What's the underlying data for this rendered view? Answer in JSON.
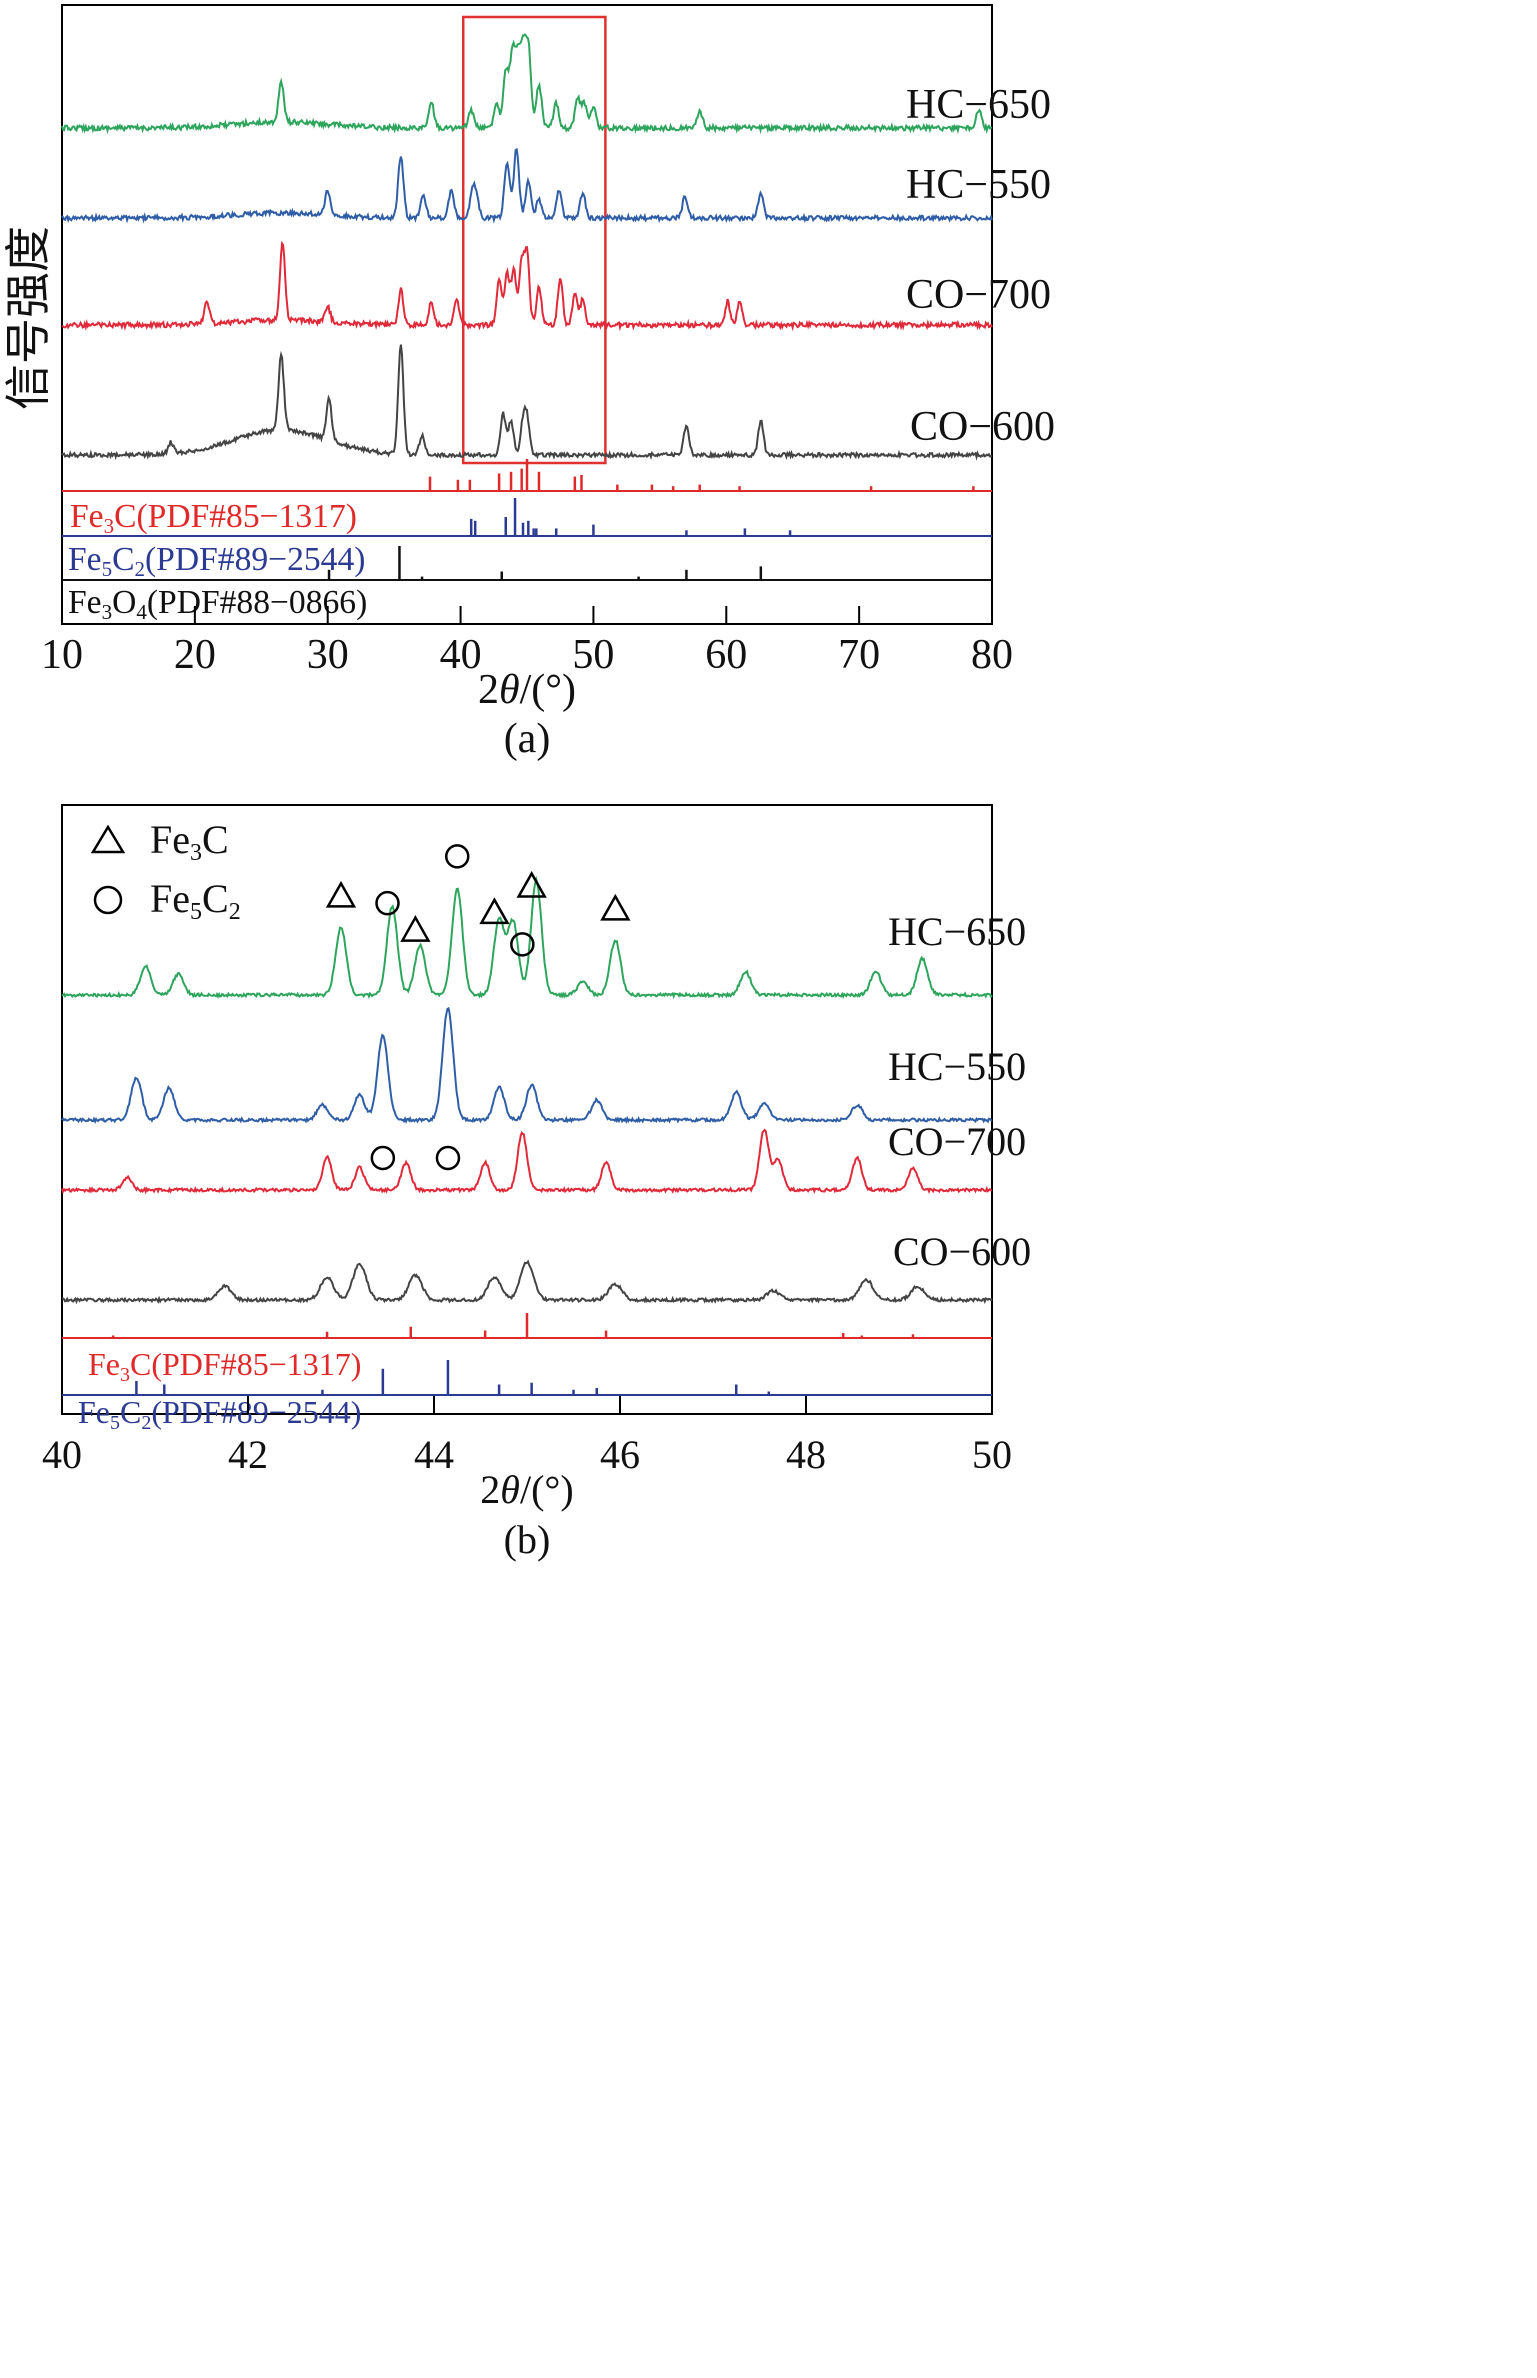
{
  "chart_data": [
    {
      "type": "line",
      "panel_label": "(a)",
      "ylabel": "信号强度",
      "xlabel_parts": [
        "2",
        "θ",
        "/(°)"
      ],
      "xlim": [
        10,
        80
      ],
      "xticks": [
        10,
        20,
        30,
        40,
        50,
        60,
        70,
        80
      ],
      "grid": false,
      "highlight_box": {
        "x_range": [
          40.2,
          50.9
        ],
        "color": "#e03030"
      },
      "series": [
        {
          "name": "HC−650",
          "color": "#2ea55c",
          "peaks": [
            [
              26.5,
              0.55
            ],
            [
              37.8,
              0.35
            ],
            [
              40.8,
              0.25
            ],
            [
              42.7,
              0.35
            ],
            [
              43.4,
              0.8
            ],
            [
              43.9,
              1.0
            ],
            [
              44.3,
              0.9
            ],
            [
              44.7,
              1.0
            ],
            [
              45.1,
              1.1
            ],
            [
              45.9,
              0.6
            ],
            [
              47.2,
              0.35
            ],
            [
              48.8,
              0.4
            ],
            [
              49.3,
              0.35
            ],
            [
              50.0,
              0.3
            ],
            [
              58.0,
              0.25
            ],
            [
              79.0,
              0.25
            ]
          ]
        },
        {
          "name": "HC−550",
          "color": "#2f5ea6",
          "peaks": [
            [
              30.0,
              0.4
            ],
            [
              35.5,
              1.0
            ],
            [
              37.2,
              0.35
            ],
            [
              39.3,
              0.45
            ],
            [
              40.9,
              0.4
            ],
            [
              41.2,
              0.3
            ],
            [
              43.5,
              0.9
            ],
            [
              44.2,
              1.1
            ],
            [
              45.1,
              0.6
            ],
            [
              45.9,
              0.3
            ],
            [
              47.4,
              0.45
            ],
            [
              49.2,
              0.4
            ],
            [
              56.9,
              0.35
            ],
            [
              62.6,
              0.4
            ]
          ]
        },
        {
          "name": "CO−700",
          "color": "#e02a3a",
          "peaks": [
            [
              20.9,
              0.3
            ],
            [
              26.6,
              1.0
            ],
            [
              30.0,
              0.2
            ],
            [
              35.5,
              0.45
            ],
            [
              37.8,
              0.3
            ],
            [
              39.7,
              0.35
            ],
            [
              42.9,
              0.6
            ],
            [
              43.5,
              0.65
            ],
            [
              44.0,
              0.7
            ],
            [
              44.6,
              0.8
            ],
            [
              45.0,
              0.9
            ],
            [
              45.9,
              0.5
            ],
            [
              47.5,
              0.6
            ],
            [
              48.6,
              0.4
            ],
            [
              49.2,
              0.35
            ],
            [
              60.1,
              0.3
            ],
            [
              61.0,
              0.3
            ]
          ]
        },
        {
          "name": "CO−600",
          "color": "#444444",
          "peaks": [
            [
              18.2,
              0.15
            ],
            [
              26.5,
              1.0
            ],
            [
              30.1,
              0.55
            ],
            [
              35.5,
              1.45
            ],
            [
              37.1,
              0.25
            ],
            [
              43.2,
              0.55
            ],
            [
              43.8,
              0.45
            ],
            [
              44.7,
              0.4
            ],
            [
              45.0,
              0.45
            ],
            [
              57.0,
              0.4
            ],
            [
              62.6,
              0.45
            ]
          ]
        }
      ],
      "references": [
        {
          "name": "Fe3C(PDF#85−1317)",
          "label_parts": [
            "Fe",
            "3",
            "C(PDF#85−1317)"
          ],
          "color": "#e02a2a",
          "lines": [
            [
              37.7,
              0.45
            ],
            [
              39.8,
              0.35
            ],
            [
              40.7,
              0.35
            ],
            [
              42.9,
              0.55
            ],
            [
              43.8,
              0.6
            ],
            [
              44.6,
              0.7
            ],
            [
              45.0,
              1.0
            ],
            [
              45.9,
              0.6
            ],
            [
              48.6,
              0.45
            ],
            [
              49.1,
              0.5
            ],
            [
              51.8,
              0.2
            ],
            [
              54.4,
              0.2
            ],
            [
              56.0,
              0.15
            ],
            [
              58.0,
              0.2
            ],
            [
              61.0,
              0.15
            ],
            [
              70.9,
              0.15
            ],
            [
              78.6,
              0.15
            ]
          ]
        },
        {
          "name": "Fe5C2(PDF#89−2544)",
          "label_parts": [
            "Fe",
            "5",
            "C",
            "2",
            "(PDF#89−2544)"
          ],
          "color": "#2b3a92",
          "lines": [
            [
              40.8,
              0.45
            ],
            [
              41.1,
              0.4
            ],
            [
              43.4,
              0.5
            ],
            [
              44.1,
              1.0
            ],
            [
              44.7,
              0.35
            ],
            [
              45.1,
              0.4
            ],
            [
              45.5,
              0.2
            ],
            [
              45.7,
              0.2
            ],
            [
              47.2,
              0.2
            ],
            [
              50.0,
              0.3
            ],
            [
              57.0,
              0.15
            ],
            [
              61.4,
              0.2
            ],
            [
              64.8,
              0.15
            ]
          ]
        },
        {
          "name": "Fe3O4(PDF#88−0866)",
          "label_parts": [
            "Fe",
            "3",
            "O",
            "4",
            "(PDF#88−0866)"
          ],
          "color": "#111111",
          "lines": [
            [
              30.1,
              0.3
            ],
            [
              35.4,
              1.0
            ],
            [
              37.1,
              0.1
            ],
            [
              43.1,
              0.25
            ],
            [
              53.4,
              0.1
            ],
            [
              57.0,
              0.3
            ],
            [
              62.6,
              0.4
            ]
          ]
        }
      ]
    },
    {
      "type": "line",
      "panel_label": "(b)",
      "xlabel_parts": [
        "2",
        "θ",
        "/(°)"
      ],
      "xlim": [
        40,
        50
      ],
      "xticks": [
        40,
        42,
        44,
        46,
        48,
        50
      ],
      "grid": false,
      "legend": [
        {
          "marker": "triangle",
          "label_parts": [
            "Fe",
            "3",
            "C"
          ]
        },
        {
          "marker": "circle",
          "label_parts": [
            "Fe",
            "5",
            "C",
            "2"
          ]
        }
      ],
      "series": [
        {
          "name": "HC−650",
          "color": "#2ea55c",
          "peaks": [
            [
              40.9,
              0.55
            ],
            [
              41.25,
              0.4
            ],
            [
              43.0,
              1.3
            ],
            [
              43.55,
              1.7
            ],
            [
              43.85,
              0.95
            ],
            [
              44.25,
              2.05
            ],
            [
              44.7,
              1.45
            ],
            [
              44.85,
              1.4
            ],
            [
              45.1,
              2.2
            ],
            [
              45.6,
              0.25
            ],
            [
              45.95,
              1.05
            ],
            [
              47.35,
              0.45
            ],
            [
              48.75,
              0.45
            ],
            [
              49.25,
              0.7
            ]
          ],
          "markers": [
            {
              "x": 43.0,
              "shape": "triangle"
            },
            {
              "x": 43.5,
              "shape": "circle"
            },
            {
              "x": 43.8,
              "shape": "triangle"
            },
            {
              "x": 44.25,
              "shape": "circle"
            },
            {
              "x": 44.65,
              "shape": "triangle"
            },
            {
              "x": 44.95,
              "shape": "circle"
            },
            {
              "x": 45.05,
              "shape": "triangle"
            },
            {
              "x": 45.95,
              "shape": "triangle"
            }
          ]
        },
        {
          "name": "HC−550",
          "color": "#2f5ea6",
          "peaks": [
            [
              40.8,
              0.85
            ],
            [
              41.15,
              0.65
            ],
            [
              42.8,
              0.3
            ],
            [
              43.2,
              0.5
            ],
            [
              43.45,
              1.7
            ],
            [
              44.15,
              2.25
            ],
            [
              44.7,
              0.65
            ],
            [
              45.05,
              0.7
            ],
            [
              45.75,
              0.4
            ],
            [
              47.25,
              0.55
            ],
            [
              47.55,
              0.35
            ],
            [
              48.55,
              0.3
            ]
          ]
        },
        {
          "name": "CO−700",
          "color": "#e02a3a",
          "peaks": [
            [
              40.7,
              0.25
            ],
            [
              42.85,
              0.65
            ],
            [
              43.2,
              0.45
            ],
            [
              43.7,
              0.55
            ],
            [
              44.55,
              0.55
            ],
            [
              44.95,
              1.15
            ],
            [
              45.85,
              0.55
            ],
            [
              47.55,
              1.2
            ],
            [
              47.7,
              0.6
            ],
            [
              48.55,
              0.65
            ],
            [
              49.15,
              0.45
            ]
          ],
          "markers": [
            {
              "x": 43.45,
              "shape": "circle"
            },
            {
              "x": 44.15,
              "shape": "circle"
            }
          ]
        },
        {
          "name": "CO−600",
          "color": "#444444",
          "peaks": [
            [
              41.75,
              0.3
            ],
            [
              42.85,
              0.5
            ],
            [
              43.2,
              0.8
            ],
            [
              43.8,
              0.55
            ],
            [
              44.65,
              0.5
            ],
            [
              45.0,
              0.85
            ],
            [
              45.95,
              0.35
            ],
            [
              47.65,
              0.2
            ],
            [
              48.65,
              0.45
            ],
            [
              49.2,
              0.3
            ]
          ]
        }
      ],
      "references": [
        {
          "name": "Fe3C(PDF#85−1317)",
          "label_parts": [
            "Fe",
            "3",
            "C(PDF#85−1317)"
          ],
          "color": "#e02a2a",
          "lines": [
            [
              40.55,
              0.1
            ],
            [
              42.85,
              0.25
            ],
            [
              43.75,
              0.45
            ],
            [
              44.55,
              0.3
            ],
            [
              45.0,
              1.0
            ],
            [
              45.85,
              0.3
            ],
            [
              48.4,
              0.2
            ],
            [
              48.6,
              0.1
            ],
            [
              49.15,
              0.15
            ]
          ]
        },
        {
          "name": "Fe5C2(PDF#89−2544)",
          "label_parts": [
            "Fe",
            "5",
            "C",
            "2",
            "(PDF#89−2544)"
          ],
          "color": "#2b3a92",
          "lines": [
            [
              40.8,
              0.4
            ],
            [
              41.1,
              0.3
            ],
            [
              42.8,
              0.15
            ],
            [
              43.45,
              0.75
            ],
            [
              44.15,
              1.0
            ],
            [
              44.7,
              0.3
            ],
            [
              45.05,
              0.35
            ],
            [
              45.5,
              0.15
            ],
            [
              45.75,
              0.2
            ],
            [
              47.25,
              0.3
            ],
            [
              47.6,
              0.1
            ]
          ]
        }
      ]
    }
  ]
}
